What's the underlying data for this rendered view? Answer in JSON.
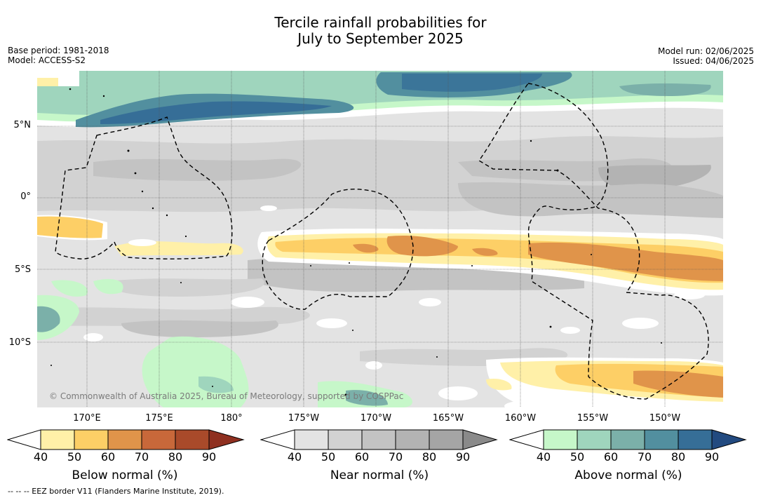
{
  "title": {
    "line1": "Tercile rainfall probabilities for",
    "line2": "July to September 2025"
  },
  "meta": {
    "base_period": "Base period: 1981-2018",
    "model": "Model: ACCESS-S2",
    "model_run": "Model run: 02/06/2025",
    "issued": "Issued: 04/06/2025"
  },
  "axes": {
    "lat_ticks": [
      "5°N",
      "0°",
      "5°S",
      "10°S"
    ],
    "lon_ticks": [
      "170°E",
      "175°E",
      "180°",
      "175°W",
      "170°W",
      "165°W",
      "160°W",
      "155°W",
      "150°W"
    ]
  },
  "copyright": "© Commonwealth of Australia 2025, Bureau of Meteorology, supported by COSPPac",
  "colorbars": [
    {
      "label": "Below normal (%)",
      "ticks": [
        "40",
        "50",
        "60",
        "70",
        "80",
        "90"
      ],
      "colors": [
        "#fff0a8",
        "#fdcf66",
        "#e0944a",
        "#c8683a",
        "#a94a2a",
        "#8f3020"
      ]
    },
    {
      "label": "Near normal (%)",
      "ticks": [
        "40",
        "50",
        "60",
        "70",
        "80",
        "90"
      ],
      "colors": [
        "#e3e3e3",
        "#d2d2d2",
        "#c3c3c3",
        "#b3b3b3",
        "#a5a5a5",
        "#8a8a8a"
      ]
    },
    {
      "label": "Above normal (%)",
      "ticks": [
        "40",
        "50",
        "60",
        "70",
        "80",
        "90"
      ],
      "colors": [
        "#c6f7c9",
        "#9fd5bd",
        "#7bb0a9",
        "#528f9f",
        "#366e97",
        "#224a80"
      ]
    }
  ],
  "footnote": "--  --  -- EEZ border V11 (Flanders Marine Institute, 2019)."
}
